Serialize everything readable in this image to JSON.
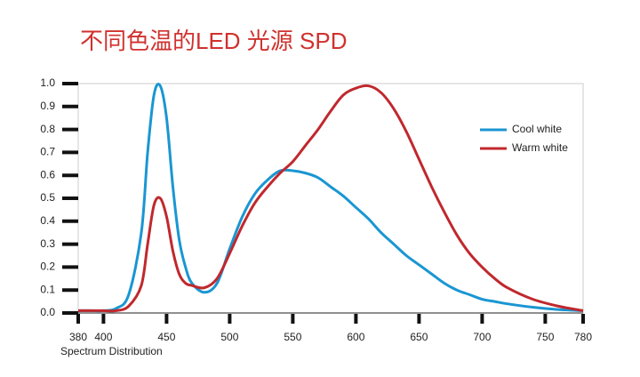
{
  "chart_data": {
    "type": "line",
    "title": "不同色温的LED 光源 SPD",
    "x_label": "Spectrum  Distribution",
    "x": [
      380,
      390,
      400,
      410,
      420,
      430,
      435,
      440,
      445,
      450,
      455,
      460,
      465,
      470,
      480,
      490,
      500,
      510,
      520,
      530,
      540,
      550,
      560,
      570,
      580,
      590,
      600,
      610,
      620,
      630,
      640,
      650,
      660,
      670,
      680,
      690,
      700,
      710,
      720,
      740,
      760,
      780
    ],
    "series": [
      {
        "name": "Cool white",
        "color": "#1a96d2",
        "values": [
          0.01,
          0.01,
          0.01,
          0.02,
          0.08,
          0.35,
          0.7,
          0.95,
          0.99,
          0.85,
          0.55,
          0.32,
          0.2,
          0.13,
          0.09,
          0.13,
          0.28,
          0.42,
          0.52,
          0.58,
          0.62,
          0.62,
          0.61,
          0.59,
          0.55,
          0.51,
          0.46,
          0.41,
          0.35,
          0.3,
          0.25,
          0.21,
          0.17,
          0.13,
          0.1,
          0.08,
          0.06,
          0.05,
          0.04,
          0.025,
          0.015,
          0.01
        ]
      },
      {
        "name": "Warm white",
        "color": "#c0282d",
        "values": [
          0.01,
          0.01,
          0.01,
          0.01,
          0.03,
          0.12,
          0.3,
          0.47,
          0.5,
          0.42,
          0.27,
          0.17,
          0.13,
          0.12,
          0.11,
          0.15,
          0.26,
          0.38,
          0.48,
          0.55,
          0.61,
          0.66,
          0.73,
          0.8,
          0.88,
          0.95,
          0.98,
          0.99,
          0.96,
          0.89,
          0.79,
          0.67,
          0.55,
          0.44,
          0.34,
          0.26,
          0.2,
          0.15,
          0.11,
          0.06,
          0.03,
          0.01
        ]
      }
    ],
    "xlim": [
      380,
      780
    ],
    "xticks": [
      380,
      400,
      450,
      500,
      550,
      600,
      650,
      700,
      750,
      780
    ],
    "ylim": [
      0,
      1
    ],
    "yticks": [
      {
        "value": 0,
        "label": "0.0"
      },
      0.1,
      0.2,
      0.3,
      0.4,
      0.5,
      0.6,
      0.7,
      0.8,
      0.9,
      {
        "value": 1,
        "label": "1.0"
      }
    ],
    "legend": "right",
    "title_color": "#d0312d"
  }
}
